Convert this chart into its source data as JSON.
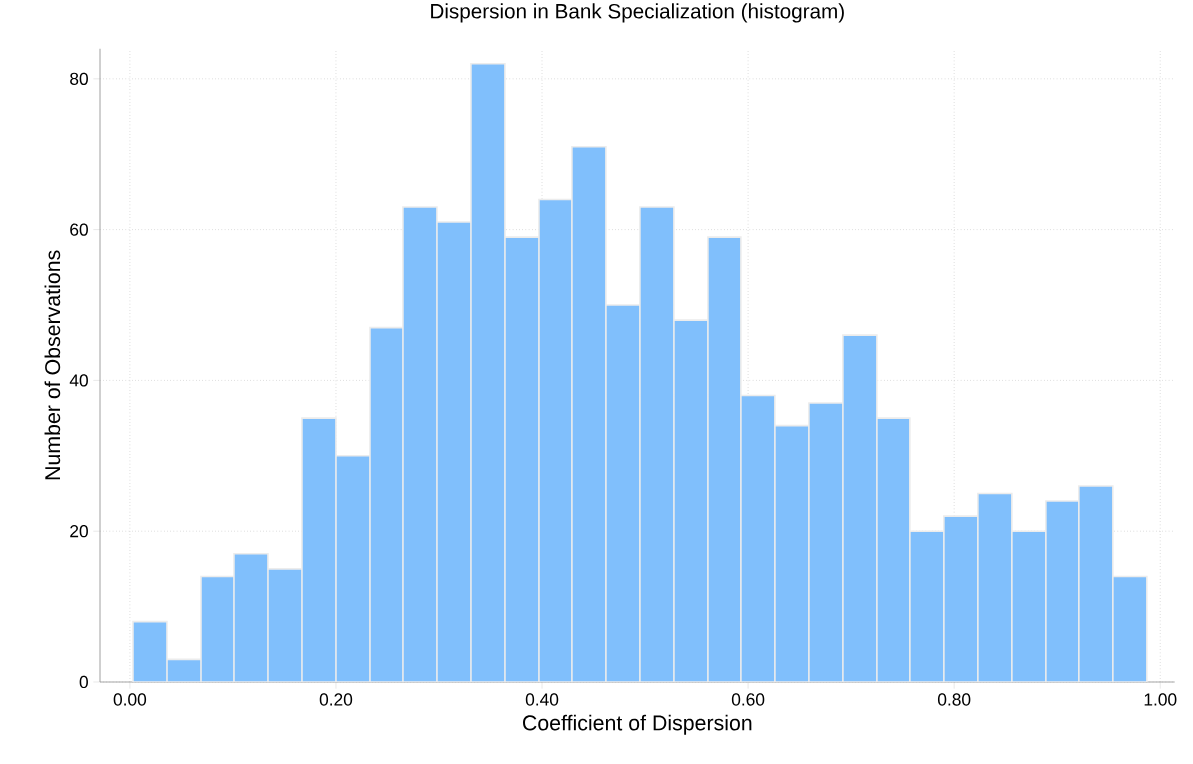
{
  "chart_data": {
    "type": "histogram",
    "title": "Dispersion in Bank Specialization (histogram)",
    "xlabel": "Coefficient of Dispersion",
    "ylabel": "Number of Observations",
    "bins": [
      0.003,
      0.036,
      0.069,
      0.101,
      0.134,
      0.167,
      0.2,
      0.233,
      0.265,
      0.298,
      0.331,
      0.364,
      0.397,
      0.429,
      0.462,
      0.495,
      0.528,
      0.561,
      0.593,
      0.626,
      0.659,
      0.692,
      0.725,
      0.757,
      0.79,
      0.823,
      0.856,
      0.889,
      0.921,
      0.954,
      0.987
    ],
    "values": [
      8,
      3,
      14,
      17,
      15,
      35,
      30,
      47,
      63,
      61,
      82,
      59,
      64,
      71,
      50,
      63,
      48,
      59,
      38,
      34,
      37,
      46,
      35,
      20,
      22,
      25,
      20,
      24,
      26,
      14
    ],
    "color": "#80bffc",
    "xlim": [
      -0.029,
      1.014
    ],
    "ylim": [
      0,
      84
    ],
    "xticks": [
      {
        "value": 0,
        "label": "0.00"
      },
      {
        "value": 0.2,
        "label": "0.20"
      },
      {
        "value": 0.4,
        "label": "0.40"
      },
      {
        "value": 0.6,
        "label": "0.60"
      },
      {
        "value": 0.8,
        "label": "0.80"
      },
      {
        "value": 1,
        "label": "1.00"
      }
    ],
    "yticks": [
      0,
      20,
      40,
      60,
      80
    ],
    "grid": true
  }
}
